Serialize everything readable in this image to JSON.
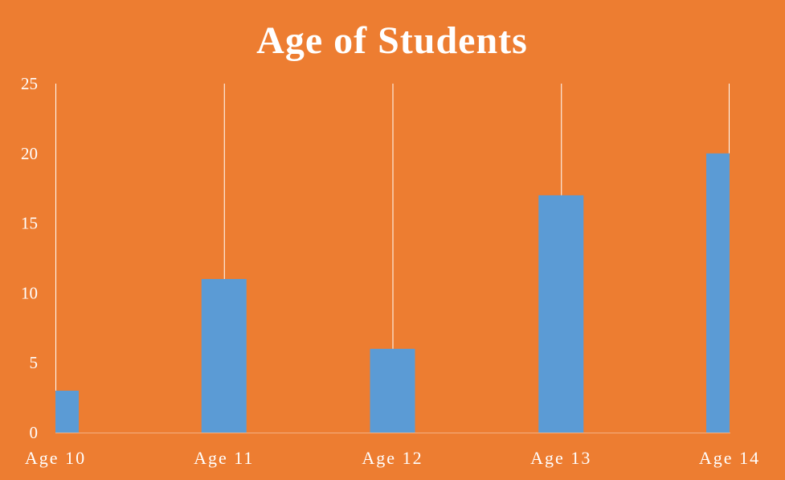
{
  "colors": {
    "background": "#ED7D31",
    "bar": "#5B9BD5",
    "text": "#FFFFFF",
    "drop_line": "#FFFFFF"
  },
  "chart_data": {
    "type": "bar",
    "title": "Age of Students",
    "categories": [
      "Age 10",
      "Age 11",
      "Age 12",
      "Age 13",
      "Age 14"
    ],
    "values": [
      3,
      11,
      6,
      17,
      20
    ],
    "xlabel": "",
    "ylabel": "",
    "ylim": [
      0,
      25
    ],
    "yticks": [
      "0",
      "5",
      "10",
      "15",
      "20",
      "25"
    ],
    "grid": false,
    "legend": "none"
  }
}
